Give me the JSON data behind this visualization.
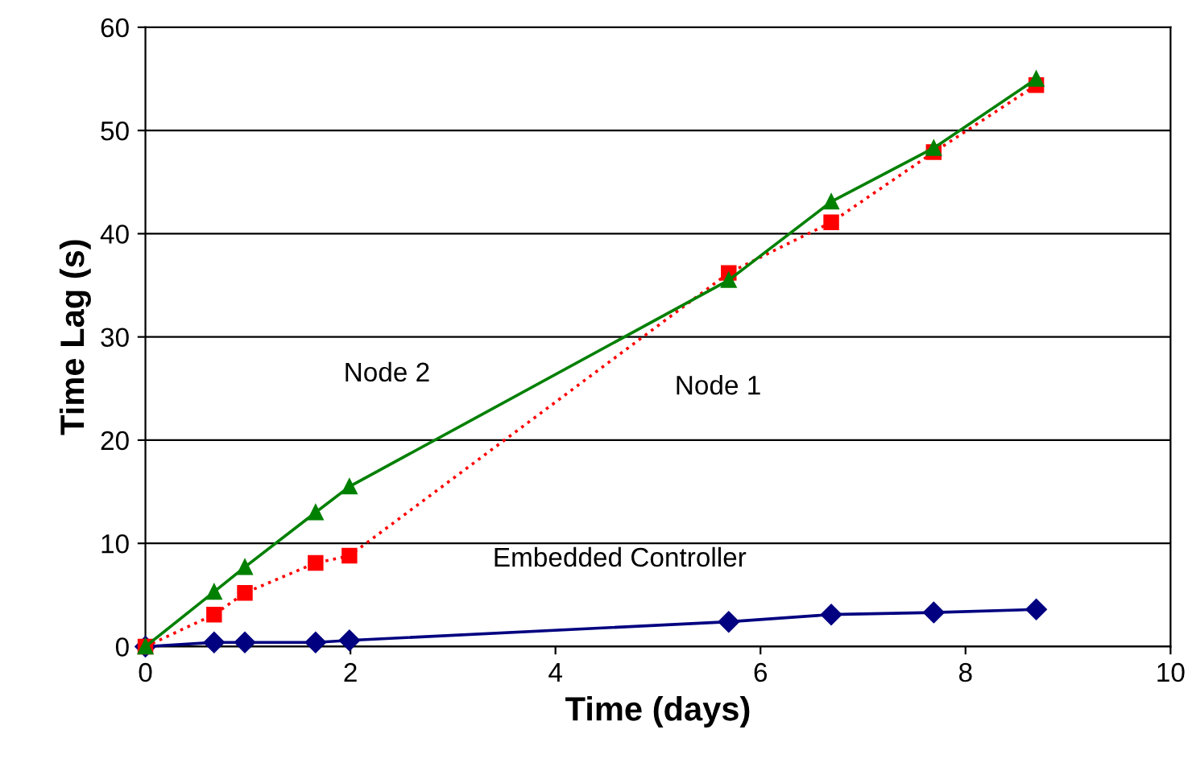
{
  "chart_data": {
    "type": "line",
    "xlabel": "Time (days)",
    "ylabel": "Time Lag (s)",
    "xlim": [
      0,
      10
    ],
    "xticks": [
      0,
      2,
      4,
      6,
      8,
      10
    ],
    "ylim": [
      0,
      60
    ],
    "yticks": [
      0,
      10,
      20,
      30,
      40,
      50,
      60
    ],
    "grid": "y",
    "legend": false,
    "series": [
      {
        "name": "Embedded Controller",
        "color": "#000080",
        "marker": "diamond",
        "line_style": "solid",
        "x": [
          0,
          0.67,
          0.97,
          1.66,
          1.99,
          5.69,
          6.69,
          7.69,
          8.69
        ],
        "values": [
          0,
          0.4,
          0.4,
          0.4,
          0.6,
          2.4,
          3.1,
          3.3,
          3.6
        ]
      },
      {
        "name": "Node 1",
        "color": "#ff0000",
        "marker": "square",
        "line_style": "dotted",
        "x": [
          0,
          0.67,
          0.97,
          1.66,
          1.99,
          5.69,
          6.69,
          7.69,
          8.69
        ],
        "values": [
          0,
          3.1,
          5.2,
          8.1,
          8.8,
          36.2,
          41.1,
          47.9,
          54.4
        ]
      },
      {
        "name": "Node 2",
        "color": "#008000",
        "marker": "triangle",
        "line_style": "solid",
        "x": [
          0,
          0.67,
          0.97,
          1.66,
          1.99,
          5.69,
          6.69,
          7.69,
          8.69
        ],
        "values": [
          0,
          5.3,
          7.7,
          13,
          15.5,
          35.5,
          43.1,
          48.3,
          55
        ]
      }
    ]
  }
}
